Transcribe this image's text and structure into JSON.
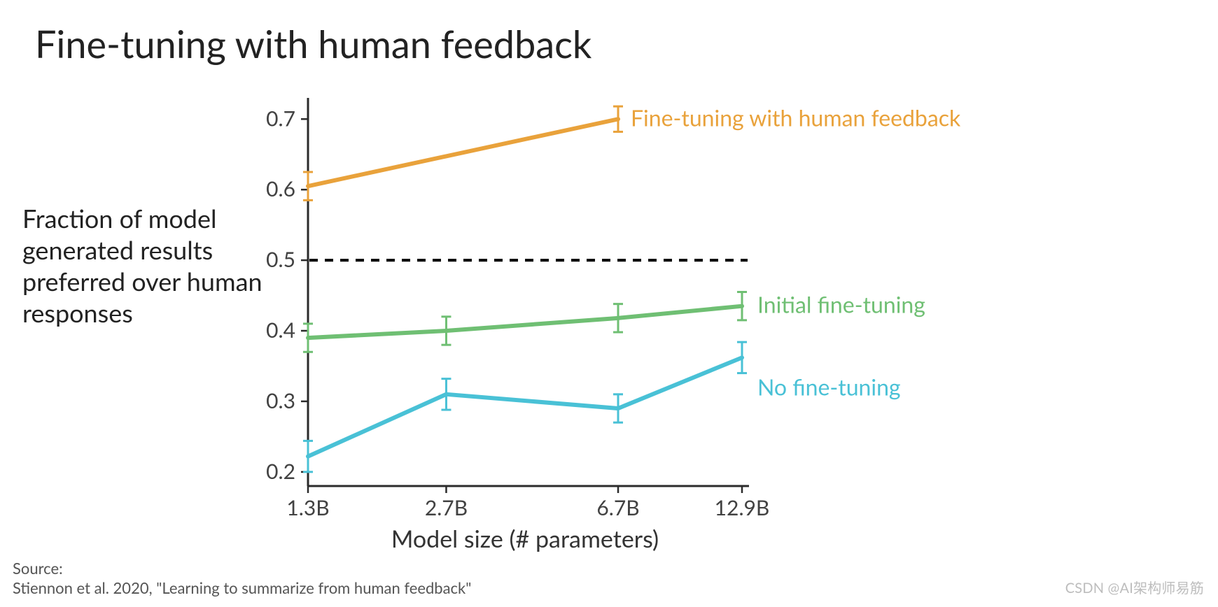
{
  "title": "Fine-tuning with human feedback",
  "y_axis_caption": "Fraction of model generated results preferred over human responses",
  "source_label": "Source:",
  "source_text": "Stiennon et al. 2020, \"Learning to summarize from human feedback\"",
  "watermark": "CSDN @AI架构师易筋",
  "chart": {
    "type": "line",
    "background_color": "#ffffff",
    "axis_color": "#2b2b2b",
    "axis_line_width": 3,
    "tick_length": 10,
    "tick_width": 2.5,
    "tick_label_fontsize": 30,
    "axis_title_fontsize": 34,
    "x_axis": {
      "title": "Model size (# parameters)",
      "scale": "log",
      "categories": [
        "1.3B",
        "2.7B",
        "6.7B",
        "12.9B"
      ],
      "values": [
        1.3,
        2.7,
        6.7,
        12.9
      ]
    },
    "y_axis": {
      "min": 0.18,
      "max": 0.73,
      "ticks": [
        0.2,
        0.3,
        0.4,
        0.5,
        0.6,
        0.7
      ],
      "tick_labels": [
        "0.2",
        "0.3",
        "0.4",
        "0.5",
        "0.6",
        "0.7"
      ]
    },
    "reference_line": {
      "y": 0.5,
      "color": "#000000",
      "dash": "12 10",
      "width": 4
    },
    "line_width": 6,
    "error_cap_width": 14,
    "error_bar_width": 3,
    "series": [
      {
        "id": "hf",
        "label": "Fine-tuning with human feedback",
        "color": "#e9a23b",
        "label_fontsize": 32,
        "points": [
          {
            "x": 1.3,
            "y": 0.605,
            "err": 0.02
          },
          {
            "x": 6.7,
            "y": 0.7,
            "err": 0.018
          }
        ],
        "label_anchor_index": 1,
        "label_dx": 18,
        "label_dy": 6
      },
      {
        "id": "initial",
        "label": "Initial fine-tuning",
        "color": "#6fbf73",
        "label_fontsize": 32,
        "points": [
          {
            "x": 1.3,
            "y": 0.39,
            "err": 0.02
          },
          {
            "x": 2.7,
            "y": 0.4,
            "err": 0.02
          },
          {
            "x": 6.7,
            "y": 0.418,
            "err": 0.02
          },
          {
            "x": 12.9,
            "y": 0.435,
            "err": 0.02
          }
        ],
        "label_anchor_index": 3,
        "label_dx": 22,
        "label_dy": 6
      },
      {
        "id": "none",
        "label": "No fine-tuning",
        "color": "#49c1d6",
        "label_fontsize": 32,
        "points": [
          {
            "x": 1.3,
            "y": 0.222,
            "err": 0.022
          },
          {
            "x": 2.7,
            "y": 0.31,
            "err": 0.022
          },
          {
            "x": 6.7,
            "y": 0.29,
            "err": 0.02
          },
          {
            "x": 12.9,
            "y": 0.362,
            "err": 0.022
          }
        ],
        "label_anchor_index": 3,
        "label_dx": 22,
        "label_dy": 50
      }
    ]
  }
}
